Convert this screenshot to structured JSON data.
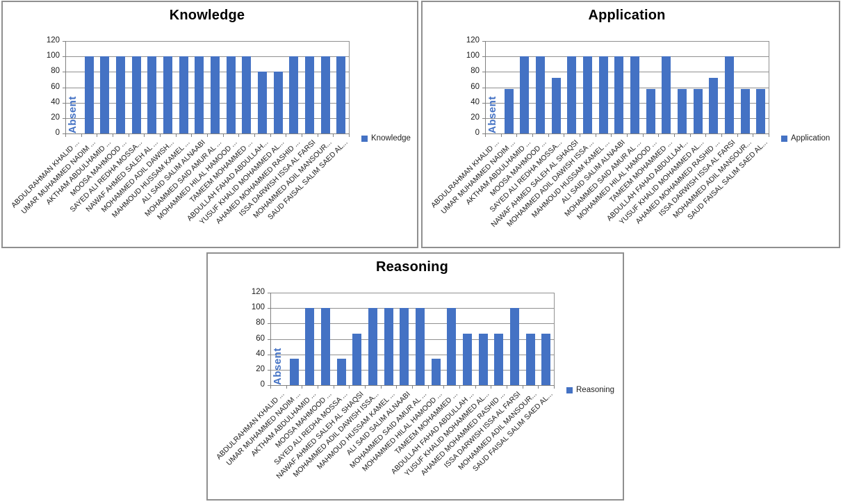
{
  "page": {
    "background": "#ffffff"
  },
  "colors": {
    "bar": "#4472C4",
    "absent_text": "#4472C4",
    "gridline": "#909090",
    "axis": "#808080",
    "panel_border": "#8f8f8f",
    "title_text": "#000000",
    "tick_text": "#1a1a1a"
  },
  "chart_data": [
    {
      "type": "bar",
      "title": "Knowledge",
      "legend": [
        {
          "label": "Knowledge",
          "swatch_color": "#4472C4"
        }
      ],
      "legend_position": "right",
      "grid": true,
      "y_axis": {
        "min": 0,
        "max": 120,
        "step": 20,
        "tick_labels": [
          "0",
          "20",
          "40",
          "60",
          "80",
          "100",
          "120"
        ]
      },
      "categories": [
        "ABDULRAHMAN KHALID ...",
        "UMAR MUHAMMED NADIM ...",
        "AKTHAM ABDULHAMID ...",
        "MOOSA MAHMOOD ...",
        "SAYED ALI REDHA MOSSA...",
        "NAWAF AHMED SALEH AL ...",
        "MOHAMMED ADIL DAWISH...",
        "MAHMOUD HUSSAM KAMEL ...",
        "ALI SAID SALIM ALNAABI",
        "MOHAMMED SAID AMUR AL ...",
        "MOHAMMED HILAL HAMOOD ...",
        "TAMEEM MOHAMMED ...",
        "ABDULLAH FAHAD ABDULLAH...",
        "YUSUF KHALID MOHAMMED AL...",
        "AHAMED MOHAMMED RASHID ...",
        "ISSA DARWISH ISSA AL FARSI",
        "MOHAMMED ADIL MANSOUR...",
        "SAUD FAISAL SALIM SAED AL..."
      ],
      "series": [
        {
          "name": "Knowledge",
          "values": [
            null,
            100,
            100,
            100,
            100,
            100,
            100,
            100,
            100,
            100,
            100,
            100,
            80,
            80,
            100,
            100,
            100,
            100
          ]
        }
      ],
      "annotations": [
        {
          "text": "Absent",
          "category_index": 0,
          "orientation": "vertical"
        }
      ]
    },
    {
      "type": "bar",
      "title": "Application",
      "legend": [
        {
          "label": "Application",
          "swatch_color": "#4472C4"
        }
      ],
      "legend_position": "right",
      "grid": true,
      "y_axis": {
        "min": 0,
        "max": 120,
        "step": 20,
        "tick_labels": [
          "0",
          "20",
          "40",
          "60",
          "80",
          "100",
          "120"
        ]
      },
      "categories": [
        "ABDULRAHMAN KHALID ...",
        "UMAR MUHAMMED NADIM ...",
        "AKTHAM ABDULHAMID ...",
        "MOOSA MAHMOOD ...",
        "SAYED ALI REDHA MOSSA...",
        "NAWAF AHMED SALEH AL SHAQSI",
        "MOHAMMED ADIL DAWISH ISSA ...",
        "MAHMOUD HUSSAM KAMEL ...",
        "ALI SAID SALIM ALNAABI",
        "MOHAMMED SAID AMUR AL ...",
        "MOHAMMED HILAL HAMOOD ...",
        "TAMEEM MOHAMMED ...",
        "ABDULLAH FAHAD ABDULLAH...",
        "YUSUF KHALID MOHAMMED AL...",
        "AHAMED MOHAMMED RASHID ...",
        "ISSA DARWISH ISSA AL FARSI",
        "MOHAMMED ADIL MANSOUR...",
        "SAUD FAISAL SALIM SAED AL..."
      ],
      "series": [
        {
          "name": "Application",
          "values": [
            null,
            58,
            100,
            100,
            72,
            100,
            100,
            100,
            100,
            100,
            58,
            100,
            58,
            58,
            72,
            100,
            58,
            58
          ]
        }
      ],
      "annotations": [
        {
          "text": "Absent",
          "category_index": 0,
          "orientation": "vertical"
        }
      ]
    },
    {
      "type": "bar",
      "title": "Reasoning",
      "legend": [
        {
          "label": "Reasoning",
          "swatch_color": "#4472C4"
        }
      ],
      "legend_position": "right",
      "grid": true,
      "y_axis": {
        "min": 0,
        "max": 120,
        "step": 20,
        "tick_labels": [
          "0",
          "20",
          "40",
          "60",
          "80",
          "100",
          "120"
        ]
      },
      "categories": [
        "ABDULRAHMAN KHALID ...",
        "UMAR MUHAMMED NADIM ...",
        "AKTHAM ABDULHAMID ...",
        "MOOSA MAHMOOD ...",
        "SAYED ALI REDHA MOSSA ...",
        "NAWAF AHMED SALEH AL SHAQSI",
        "MOHAMMED ADIL DAWISH ISSA...",
        "MAHMOUD HUSSAM KAMEL ...",
        "ALI SAID SALIM ALNAABI",
        "MOHAMMED SAID AMUR AL ...",
        "MOHAMMED HILAL HAMOOD ...",
        "TAMEEM MOHAMMED ...",
        "ABDULLAH FAHAD ABDULLAH ...",
        "YUSUF KHALID MOHAMMED AL...",
        "AHAMED MOHAMMED RASHID ...",
        "ISSA DARWISH ISSA AL FARSI",
        "MOHAMMED ADIL MANSOUR...",
        "SAUD FAISAL SALIM SAED AL..."
      ],
      "series": [
        {
          "name": "Reasoning",
          "values": [
            null,
            34,
            100,
            100,
            34,
            67,
            100,
            100,
            100,
            100,
            34,
            100,
            67,
            67,
            67,
            100,
            67,
            67
          ]
        }
      ],
      "annotations": [
        {
          "text": "Absent",
          "category_index": 0,
          "orientation": "vertical"
        }
      ]
    }
  ]
}
